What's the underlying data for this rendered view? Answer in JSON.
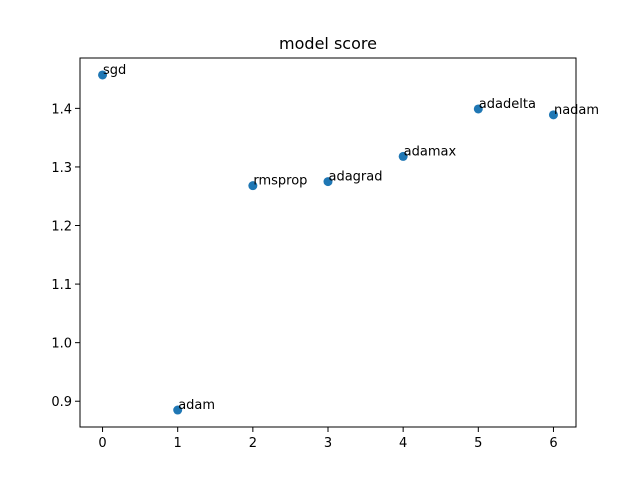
{
  "chart_data": {
    "type": "scatter",
    "title": "model score",
    "xlabel": "",
    "ylabel": "",
    "x": [
      0,
      1,
      2,
      3,
      4,
      5,
      6
    ],
    "y": [
      1.457,
      0.885,
      1.268,
      1.275,
      1.318,
      1.399,
      1.389
    ],
    "annotations": [
      "sgd",
      "adam",
      "rmsprop",
      "adagrad",
      "adamax",
      "adadelta",
      "nadam"
    ],
    "xticks": [
      "0",
      "1",
      "2",
      "3",
      "4",
      "5",
      "6"
    ],
    "yticks": [
      "0.9",
      "1.0",
      "1.1",
      "1.2",
      "1.3",
      "1.4"
    ],
    "xlim": [
      -0.3,
      6.3
    ],
    "ylim": [
      0.856,
      1.486
    ],
    "marker_color": "#1f77b4",
    "grid": false,
    "legend": "none"
  }
}
